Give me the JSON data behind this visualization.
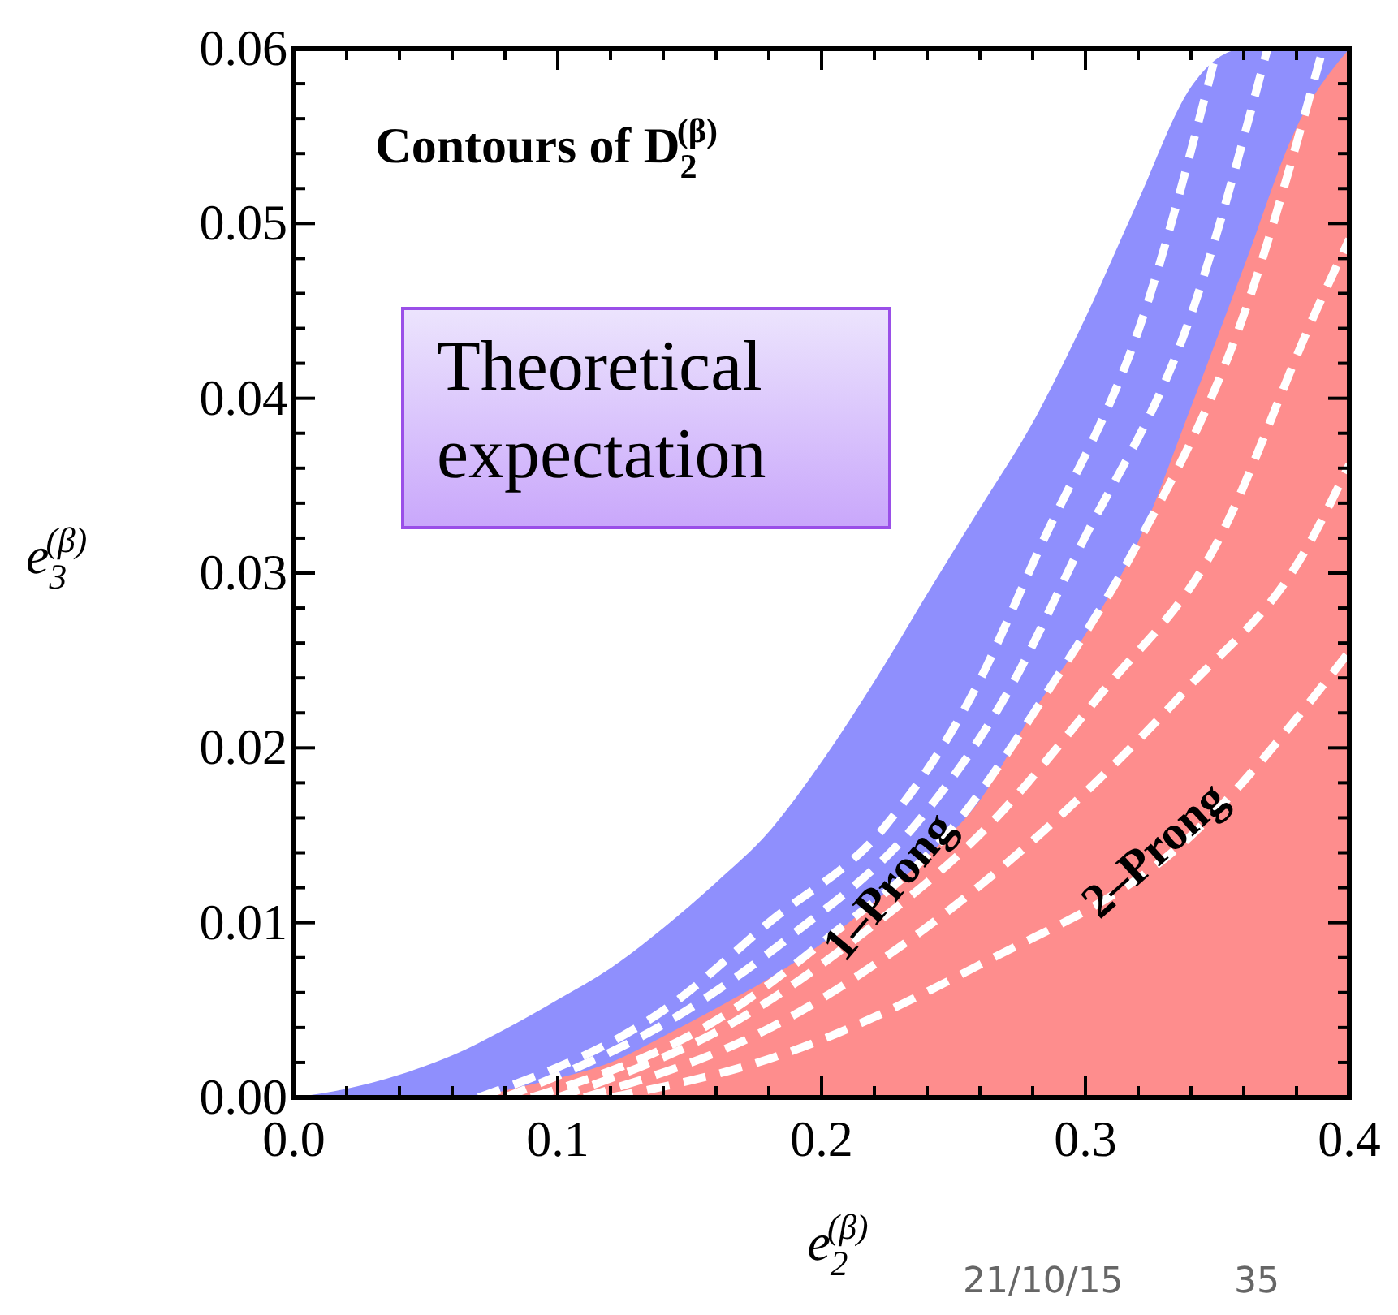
{
  "chart_data": {
    "type": "area",
    "title": "Contours of D$_{2}$$^{(β)}$",
    "xlabel": "e$_{2}$$^{(β)}$",
    "ylabel": "e$_{3}$$^{(β)}$",
    "annotations": [
      "Theoretical expectation",
      "1–Prong",
      "2–Prong",
      "21/10/15",
      "35"
    ],
    "x": [
      0,
      0.02,
      0.04,
      0.06,
      0.08,
      0.1,
      0.12,
      0.14,
      0.16,
      0.18,
      0.2,
      0.22,
      0.24,
      0.26,
      0.28,
      0.3,
      0.32,
      0.34,
      0.36,
      0.38,
      0.4
    ],
    "series": [
      {
        "color": "#8f8ffd",
        "values": [
          0,
          0.0005,
          0.0013,
          0.0024,
          0.0039,
          0.0056,
          0.0074,
          0.0097,
          0.0123,
          0.0152,
          0.0192,
          0.0238,
          0.0288,
          0.0337,
          0.0386,
          0.0446,
          0.0513,
          0.0578,
          0.06,
          0.06,
          0.06
        ]
      },
      {
        "color": "#fe8d8d",
        "x": [
          0.07,
          0.08,
          0.1,
          0.12,
          0.14,
          0.16,
          0.18,
          0.2,
          0.22,
          0.24,
          0.26,
          0.28,
          0.3,
          0.32,
          0.34,
          0.36,
          0.38,
          0.4
        ],
        "values": [
          0,
          0.0004,
          0.0011,
          0.002,
          0.0035,
          0.0051,
          0.0068,
          0.0088,
          0.0112,
          0.0138,
          0.017,
          0.022,
          0.0265,
          0.0318,
          0.0395,
          0.0475,
          0.0555,
          0.06
        ]
      },
      {
        "type": "line",
        "color": "#ffffff",
        "line_style": "dashed",
        "x": [
          0.07,
          0.143,
          0.18,
          0.224,
          0.258,
          0.282,
          0.323,
          0.35
        ],
        "values": [
          0,
          0.0053,
          0.01,
          0.0155,
          0.0233,
          0.0312,
          0.0452,
          0.06
        ]
      },
      {
        "type": "line",
        "color": "#ffffff",
        "line_style": "dashed",
        "x": [
          0.08,
          0.148,
          0.188,
          0.235,
          0.271,
          0.297,
          0.341,
          0.369
        ],
        "values": [
          0,
          0.0049,
          0.0092,
          0.0155,
          0.0233,
          0.0312,
          0.0452,
          0.06
        ]
      },
      {
        "type": "line",
        "color": "#ffffff",
        "line_style": "dashed",
        "x": [
          0.09,
          0.161,
          0.203,
          0.25,
          0.286,
          0.318,
          0.361,
          0.39
        ],
        "values": [
          0,
          0.0045,
          0.0092,
          0.0155,
          0.0233,
          0.0312,
          0.0452,
          0.06
        ]
      },
      {
        "type": "line",
        "color": "#ffffff",
        "line_style": "dashed",
        "x": [
          0.1,
          0.169,
          0.214,
          0.263,
          0.307,
          0.348,
          0.388,
          0.4
        ],
        "values": [
          0,
          0.0045,
          0.0092,
          0.0155,
          0.0233,
          0.0312,
          0.0452,
          0.0491
        ]
      },
      {
        "type": "line",
        "color": "#ffffff",
        "line_style": "dashed",
        "x": [
          0.11,
          0.182,
          0.235,
          0.286,
          0.338,
          0.383,
          0.4
        ],
        "values": [
          0,
          0.0041,
          0.0092,
          0.0155,
          0.0233,
          0.0312,
          0.0362
        ]
      },
      {
        "type": "line",
        "color": "#ffffff",
        "line_style": "dashed",
        "x": [
          0.12,
          0.182,
          0.26,
          0.338,
          0.4
        ],
        "values": [
          0,
          0.0023,
          0.0076,
          0.0147,
          0.0255
        ]
      }
    ],
    "xlim": [
      0,
      0.4
    ],
    "xticks": [
      {
        "value": 0,
        "label": "0.0"
      },
      {
        "value": 0.02,
        "label": null
      },
      {
        "value": 0.04,
        "label": null
      },
      {
        "value": 0.06,
        "label": null
      },
      {
        "value": 0.08,
        "label": null
      },
      0.1,
      {
        "value": 0.12,
        "label": null
      },
      {
        "value": 0.14,
        "label": null
      },
      {
        "value": 0.16,
        "label": null
      },
      {
        "value": 0.18,
        "label": null
      },
      0.2,
      {
        "value": 0.22,
        "label": null
      },
      {
        "value": 0.24,
        "label": null
      },
      {
        "value": 0.26,
        "label": null
      },
      {
        "value": 0.28,
        "label": null
      },
      0.3,
      {
        "value": 0.32,
        "label": null
      },
      {
        "value": 0.34,
        "label": null
      },
      {
        "value": 0.36,
        "label": null
      },
      {
        "value": 0.38,
        "label": null
      },
      0.4
    ],
    "ylim": [
      0,
      0.06
    ],
    "yticks": [
      {
        "value": 0,
        "label": "0.00"
      },
      {
        "value": 0.002,
        "label": null
      },
      {
        "value": 0.004,
        "label": null
      },
      {
        "value": 0.006,
        "label": null
      },
      {
        "value": 0.008,
        "label": null
      },
      0.01,
      {
        "value": 0.012,
        "label": null
      },
      {
        "value": 0.014,
        "label": null
      },
      {
        "value": 0.016,
        "label": null
      },
      {
        "value": 0.018,
        "label": null
      },
      0.02,
      {
        "value": 0.022,
        "label": null
      },
      {
        "value": 0.024,
        "label": null
      },
      {
        "value": 0.026,
        "label": null
      },
      {
        "value": 0.028,
        "label": null
      },
      0.03,
      {
        "value": 0.032,
        "label": null
      },
      {
        "value": 0.034,
        "label": null
      },
      {
        "value": 0.036,
        "label": null
      },
      {
        "value": 0.038,
        "label": null
      },
      0.04,
      {
        "value": 0.042,
        "label": null
      },
      {
        "value": 0.044,
        "label": null
      },
      {
        "value": 0.046,
        "label": null
      },
      {
        "value": 0.048,
        "label": null
      },
      0.05,
      {
        "value": 0.052,
        "label": null
      },
      {
        "value": 0.054,
        "label": null
      },
      {
        "value": 0.056,
        "label": null
      },
      {
        "value": 0.058,
        "label": null
      },
      0.06
    ]
  }
}
